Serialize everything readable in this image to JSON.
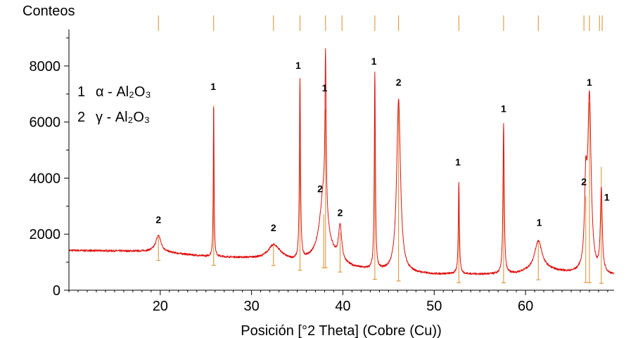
{
  "chart_data": {
    "type": "line",
    "title": "",
    "ylabel": "Conteos",
    "xlabel": "Posición [°2 Theta] (Cobre (Cu))",
    "xlim": [
      10,
      69.7
    ],
    "ylim": [
      0,
      9200
    ],
    "x_ticks": [
      20,
      30,
      40,
      50,
      60
    ],
    "y_ticks": [
      0,
      2000,
      4000,
      6000,
      8000
    ],
    "grid": false,
    "colors": {
      "pattern": "#e01010",
      "reference": "#d98c2a",
      "axis": "#000000"
    },
    "legend": [
      {
        "key": "1",
        "phase": "α - Al₂O₃"
      },
      {
        "key": "2",
        "phase": "γ - Al₂O₃"
      }
    ],
    "baseline": {
      "x": [
        10,
        15,
        19,
        21,
        25,
        31,
        33,
        34,
        35,
        37,
        38.8,
        40,
        41,
        43,
        45,
        48,
        50,
        52,
        55,
        57,
        59,
        60,
        62.5,
        65,
        67.6,
        69.5,
        69.7
      ],
      "y": [
        1420,
        1400,
        1380,
        1330,
        1200,
        1130,
        1200,
        1080,
        1000,
        1100,
        1100,
        900,
        800,
        700,
        650,
        590,
        560,
        570,
        560,
        560,
        580,
        640,
        700,
        600,
        560,
        520,
        520
      ]
    },
    "peaks": [
      {
        "x": 19.8,
        "height": 1950,
        "width": 0.35,
        "phase": "2"
      },
      {
        "x": 25.85,
        "height": 6700,
        "width": 0.05,
        "phase": "1"
      },
      {
        "x": 32.4,
        "height": 1600,
        "width": 0.7,
        "phase": "2"
      },
      {
        "x": 35.3,
        "height": 7450,
        "width": 0.07,
        "phase": "1"
      },
      {
        "x": 37.9,
        "height": 3500,
        "width": 0.5,
        "phase": "2"
      },
      {
        "x": 38.1,
        "height": 6550,
        "width": 0.07,
        "phase": "1"
      },
      {
        "x": 39.7,
        "height": 2200,
        "width": 0.2,
        "phase": "2"
      },
      {
        "x": 43.5,
        "height": 7700,
        "width": 0.07,
        "phase": "1"
      },
      {
        "x": 46.1,
        "height": 6800,
        "width": 0.25,
        "phase": "2"
      },
      {
        "x": 52.7,
        "height": 3850,
        "width": 0.07,
        "phase": "1"
      },
      {
        "x": 57.6,
        "height": 5900,
        "width": 0.08,
        "phase": "1"
      },
      {
        "x": 61.4,
        "height": 1750,
        "width": 0.5,
        "phase": "1"
      },
      {
        "x": 66.6,
        "height": 3300,
        "width": 0.15,
        "phase": "2"
      },
      {
        "x": 67.0,
        "height": 6750,
        "width": 0.22,
        "phase": "1"
      },
      {
        "x": 68.3,
        "height": 3500,
        "width": 0.12,
        "phase": "1"
      }
    ],
    "reference_lines": [
      {
        "x": 19.8,
        "y": 1900
      },
      {
        "x": 25.85,
        "y": 6600
      },
      {
        "x": 32.4,
        "y": 1600
      },
      {
        "x": 35.3,
        "y": 7350
      },
      {
        "x": 37.9,
        "y": 2700
      },
      {
        "x": 38.1,
        "y": 6450
      },
      {
        "x": 39.7,
        "y": 2050
      },
      {
        "x": 43.5,
        "y": 7600
      },
      {
        "x": 46.1,
        "y": 6800
      },
      {
        "x": 52.7,
        "y": 3700
      },
      {
        "x": 57.6,
        "y": 5800
      },
      {
        "x": 61.4,
        "y": 1800
      },
      {
        "x": 66.6,
        "y": 3350
      },
      {
        "x": 67.0,
        "y": 6700
      },
      {
        "x": 68.3,
        "y": 4400
      }
    ],
    "top_markers_x": [
      19.8,
      25.85,
      32.4,
      35.3,
      38.1,
      39.9,
      43.5,
      46.1,
      52.7,
      57.6,
      61.4,
      66.4,
      67.0,
      68.1,
      68.4
    ],
    "peak_labels": [
      {
        "text": "2",
        "x": 19.8,
        "y": 2400
      },
      {
        "text": "1",
        "x": 25.8,
        "y": 7150
      },
      {
        "text": "2",
        "x": 32.4,
        "y": 2100
      },
      {
        "text": "1",
        "x": 35.1,
        "y": 7900
      },
      {
        "text": "2",
        "x": 37.5,
        "y": 3500
      },
      {
        "text": "1",
        "x": 38.0,
        "y": 7100
      },
      {
        "text": "2",
        "x": 39.7,
        "y": 2650
      },
      {
        "text": "1",
        "x": 43.4,
        "y": 8050
      },
      {
        "text": "2",
        "x": 46.1,
        "y": 7300
      },
      {
        "text": "1",
        "x": 52.6,
        "y": 4450
      },
      {
        "text": "1",
        "x": 57.6,
        "y": 6350
      },
      {
        "text": "1",
        "x": 61.5,
        "y": 2300
      },
      {
        "text": "2",
        "x": 66.4,
        "y": 3750
      },
      {
        "text": "1",
        "x": 67.0,
        "y": 7300
      },
      {
        "text": "1",
        "x": 68.9,
        "y": 3200
      }
    ]
  }
}
